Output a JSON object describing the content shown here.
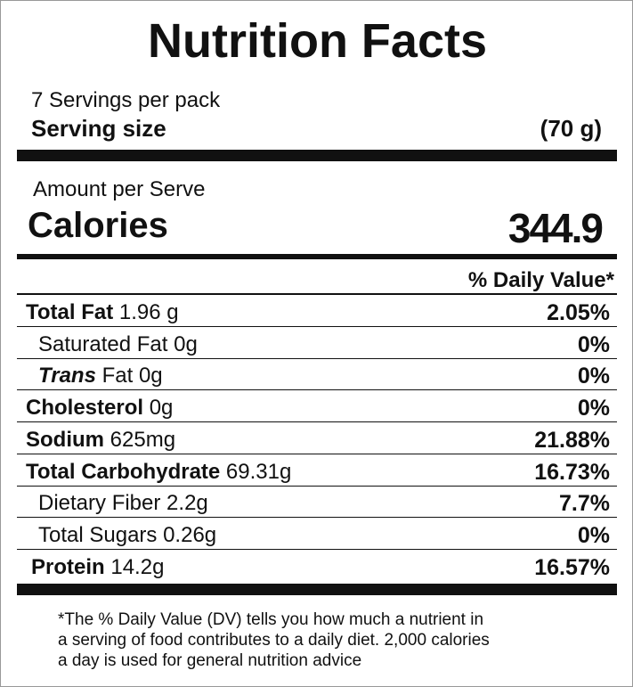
{
  "title": "Nutrition Facts",
  "servings_per_pack": "7 Servings per pack",
  "serving_size": {
    "label": "Serving size",
    "value": "(70 g)"
  },
  "amount_per": "Amount per Serve",
  "calories": {
    "label": "Calories",
    "value": "344.9"
  },
  "daily_value_header": "% Daily Value*",
  "rows": [
    {
      "name": "Total Fat",
      "amount": "1.96 g",
      "dv": "2.05%"
    },
    {
      "name": "Saturated Fat",
      "amount": "0g",
      "dv": "0%"
    },
    {
      "prefix": "Trans",
      "name": "Fat",
      "amount": "0g",
      "dv": "0%"
    },
    {
      "name": "Cholesterol",
      "amount": "0g",
      "dv": "0%"
    },
    {
      "name": "Sodium",
      "amount": "625mg",
      "dv": "21.88%"
    },
    {
      "name": "Total Carbohydrate",
      "amount": "69.31g",
      "dv": "16.73%"
    },
    {
      "name": "Dietary Fiber",
      "amount": "2.2g",
      "dv": "7.7%"
    },
    {
      "name": "Total Sugars",
      "amount": "0.26g",
      "dv": "0%"
    },
    {
      "name": "Protein",
      "amount": "14.2g",
      "dv": "16.57%"
    }
  ],
  "footnote": [
    "*The % Daily Value (DV) tells you how much a nutrient in",
    "a serving of food contributes to a daily diet. 2,000 calories",
    "a day is used for general nutrition advice"
  ]
}
